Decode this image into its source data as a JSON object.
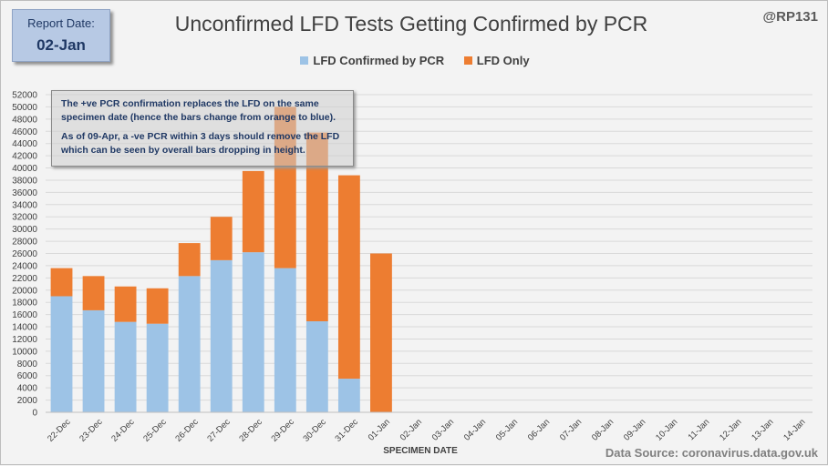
{
  "report": {
    "label": "Report Date:",
    "value": "02-Jan"
  },
  "credit": "@RP131",
  "source": "Data Source: coronavirus.data.gov.uk",
  "annotation": {
    "line1": "The +ve PCR confirmation replaces the LFD on the same specimen date (hence the bars change from orange to blue).",
    "line2": "As of 09-Apr, a -ve PCR within 3 days should remove the LFD which can be seen by overall bars dropping  in height."
  },
  "colors": {
    "confirmed": "#9dc3e6",
    "lfd_only": "#ed7d31",
    "grid": "#d9d9d9",
    "text": "#404040"
  },
  "chart_data": {
    "type": "bar",
    "stacked": true,
    "title": "Unconfirmed LFD Tests Getting Confirmed by PCR",
    "xlabel": "SPECIMEN DATE",
    "ylabel": "",
    "ylim": [
      0,
      52000
    ],
    "ytick_step": 2000,
    "grid": true,
    "legend_position": "top",
    "categories": [
      "22-Dec",
      "23-Dec",
      "24-Dec",
      "25-Dec",
      "26-Dec",
      "27-Dec",
      "28-Dec",
      "29-Dec",
      "30-Dec",
      "31-Dec",
      "01-Jan",
      "02-Jan",
      "03-Jan",
      "04-Jan",
      "05-Jan",
      "06-Jan",
      "07-Jan",
      "08-Jan",
      "09-Jan",
      "10-Jan",
      "11-Jan",
      "12-Jan",
      "13-Jan",
      "14-Jan"
    ],
    "series": [
      {
        "name": "LFD Confirmed by PCR",
        "values": [
          19000,
          16700,
          14800,
          14500,
          22300,
          24900,
          26200,
          23600,
          14900,
          5500,
          0,
          0,
          0,
          0,
          0,
          0,
          0,
          0,
          0,
          0,
          0,
          0,
          0,
          0
        ]
      },
      {
        "name": "LFD Only",
        "values": [
          4600,
          5600,
          5800,
          5800,
          5400,
          7100,
          13300,
          26400,
          30900,
          33300,
          26000,
          0,
          0,
          0,
          0,
          0,
          0,
          0,
          0,
          0,
          0,
          0,
          0,
          0
        ]
      }
    ]
  }
}
